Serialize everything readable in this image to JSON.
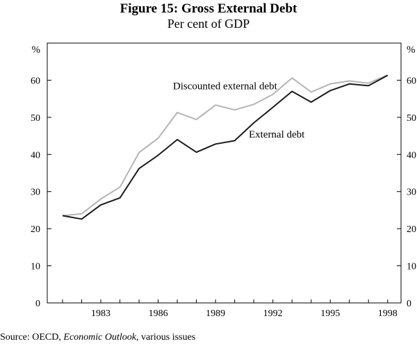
{
  "title": "Figure 15: Gross External Debt",
  "subtitle": "Per cent of GDP",
  "source": {
    "prefix": "Source: OECD, ",
    "publication": "Economic Outlook",
    "suffix": ", various issues"
  },
  "chart_data": {
    "type": "line",
    "title": "Figure 15: Gross External Debt",
    "subtitle": "Per cent of GDP",
    "xlabel": "",
    "ylabel": "%",
    "ylabel_right": "%",
    "xlim": [
      1980.2,
      1998.7
    ],
    "ylim": [
      0,
      70
    ],
    "yticks": [
      0,
      10,
      20,
      30,
      40,
      50,
      60
    ],
    "xticks": [
      1983,
      1986,
      1989,
      1992,
      1995,
      1998
    ],
    "x": [
      1981,
      1982,
      1983,
      1984,
      1985,
      1986,
      1987,
      1988,
      1989,
      1990,
      1991,
      1992,
      1993,
      1994,
      1995,
      1996,
      1997,
      1998
    ],
    "series": [
      {
        "name": "Discounted external debt",
        "color": "#b4b4b4",
        "values": [
          23.5,
          24.0,
          28.0,
          31.2,
          40.5,
          44.4,
          51.3,
          49.4,
          53.3,
          52.0,
          53.5,
          56.2,
          60.6,
          56.8,
          59.0,
          59.8,
          59.2,
          61.4
        ]
      },
      {
        "name": "External debt",
        "color": "#1a1a1a",
        "values": [
          23.5,
          22.6,
          26.4,
          28.3,
          36.2,
          39.8,
          44.0,
          40.6,
          42.8,
          43.7,
          48.5,
          52.7,
          57.0,
          54.1,
          57.2,
          59.0,
          58.5,
          61.3
        ]
      }
    ],
    "annotations": [
      {
        "text": "Discounted external debt",
        "series": "Discounted external debt",
        "x": 1989.5,
        "y": 57.6
      },
      {
        "text": "External debt",
        "series": "External debt",
        "x": 1992.2,
        "y": 44.5
      }
    ],
    "grid": false,
    "legend": "none"
  }
}
